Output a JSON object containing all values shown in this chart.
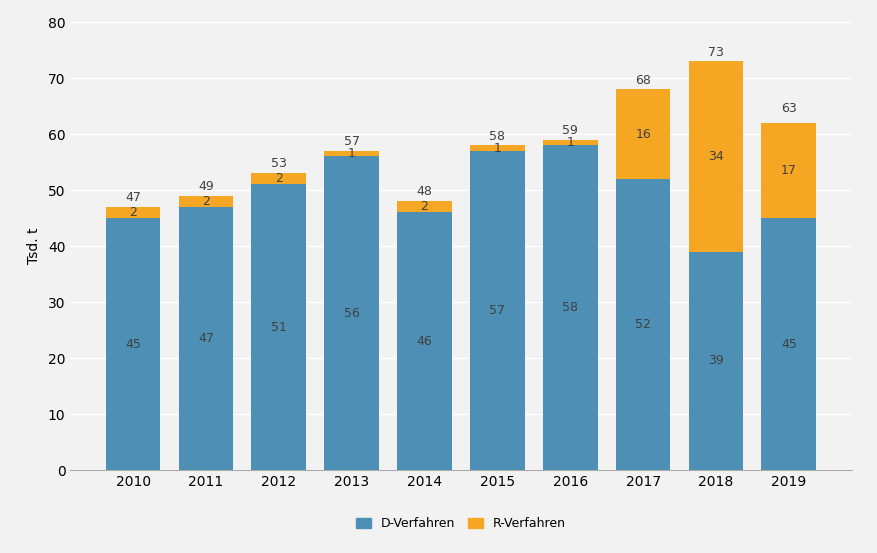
{
  "years": [
    "2010",
    "2011",
    "2012",
    "2013",
    "2014",
    "2015",
    "2016",
    "2017",
    "2018",
    "2019"
  ],
  "d_verfahren": [
    45,
    47,
    51,
    56,
    46,
    57,
    58,
    52,
    39,
    45
  ],
  "r_verfahren": [
    2,
    2,
    2,
    1,
    2,
    1,
    1,
    16,
    34,
    17
  ],
  "totals": [
    47,
    49,
    53,
    57,
    48,
    58,
    59,
    68,
    73,
    63
  ],
  "bar_color_d": "#4e8fb5",
  "bar_color_r": "#f5a623",
  "ylabel": "Tsd. t",
  "ylim": [
    0,
    80
  ],
  "yticks": [
    0,
    10,
    20,
    30,
    40,
    50,
    60,
    70,
    80
  ],
  "legend_d": "D-Verfahren",
  "legend_r": "R-Verfahren",
  "bar_width": 0.75,
  "background_color": "#f2f2f2",
  "plot_bg_color": "#f2f2f2",
  "grid_color": "#ffffff",
  "label_fontsize": 9,
  "axis_fontsize": 10,
  "legend_fontsize": 9,
  "d_label_color": "#404040",
  "r_label_color": "#404040",
  "total_label_color": "#404040"
}
